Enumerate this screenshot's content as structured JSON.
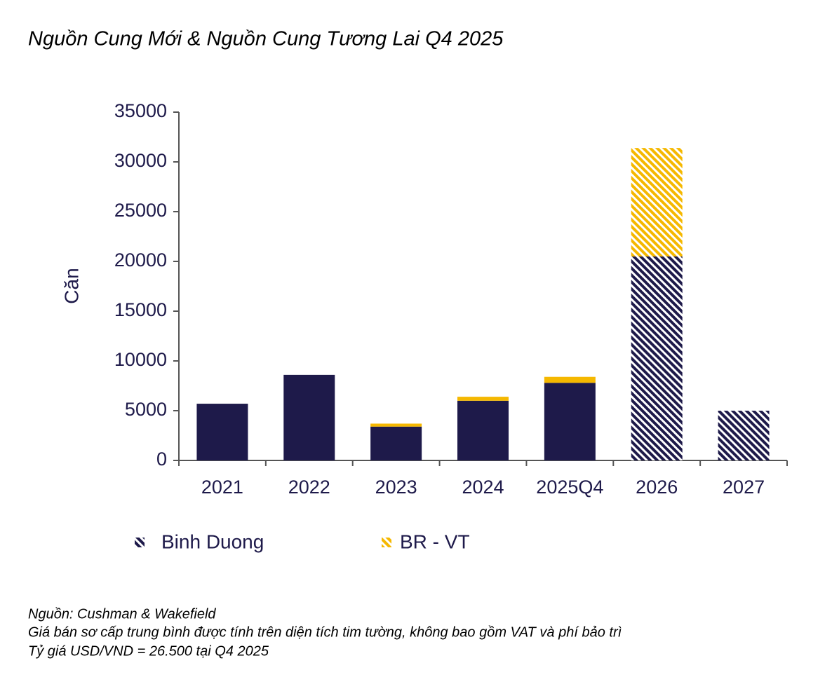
{
  "chart_data": {
    "type": "stacked_bar",
    "title": "Nguồn Cung Mới & Nguồn Cung Tương Lai Q4 2025",
    "y_label": "Căn",
    "categories": [
      "2021",
      "2022",
      "2023",
      "2024",
      "2025Q4",
      "2026",
      "2027"
    ],
    "series": [
      {
        "name": "Binh Duong",
        "color": "#1e1a4a",
        "values": [
          5700,
          8600,
          3400,
          6000,
          7800,
          20500,
          5000
        ]
      },
      {
        "name": "BR - VT",
        "color": "#f5b800",
        "values": [
          0,
          0,
          300,
          400,
          600,
          10900,
          0
        ]
      }
    ],
    "hatched": [
      false,
      false,
      false,
      false,
      false,
      true,
      true
    ],
    "ylim": [
      0,
      35000
    ],
    "yticks": [
      0,
      5000,
      10000,
      15000,
      20000,
      25000,
      30000,
      35000
    ],
    "grid": false,
    "legend": "bottom",
    "notes": [
      "Nguồn: Cushman & Wakefield",
      "Giá bán sơ cấp trung bình được tính trên diện tích tim tường, không bao gồm VAT và phí bảo trì",
      "Tỷ giá USD/VND = 26.500 tại Q4 2025"
    ]
  }
}
